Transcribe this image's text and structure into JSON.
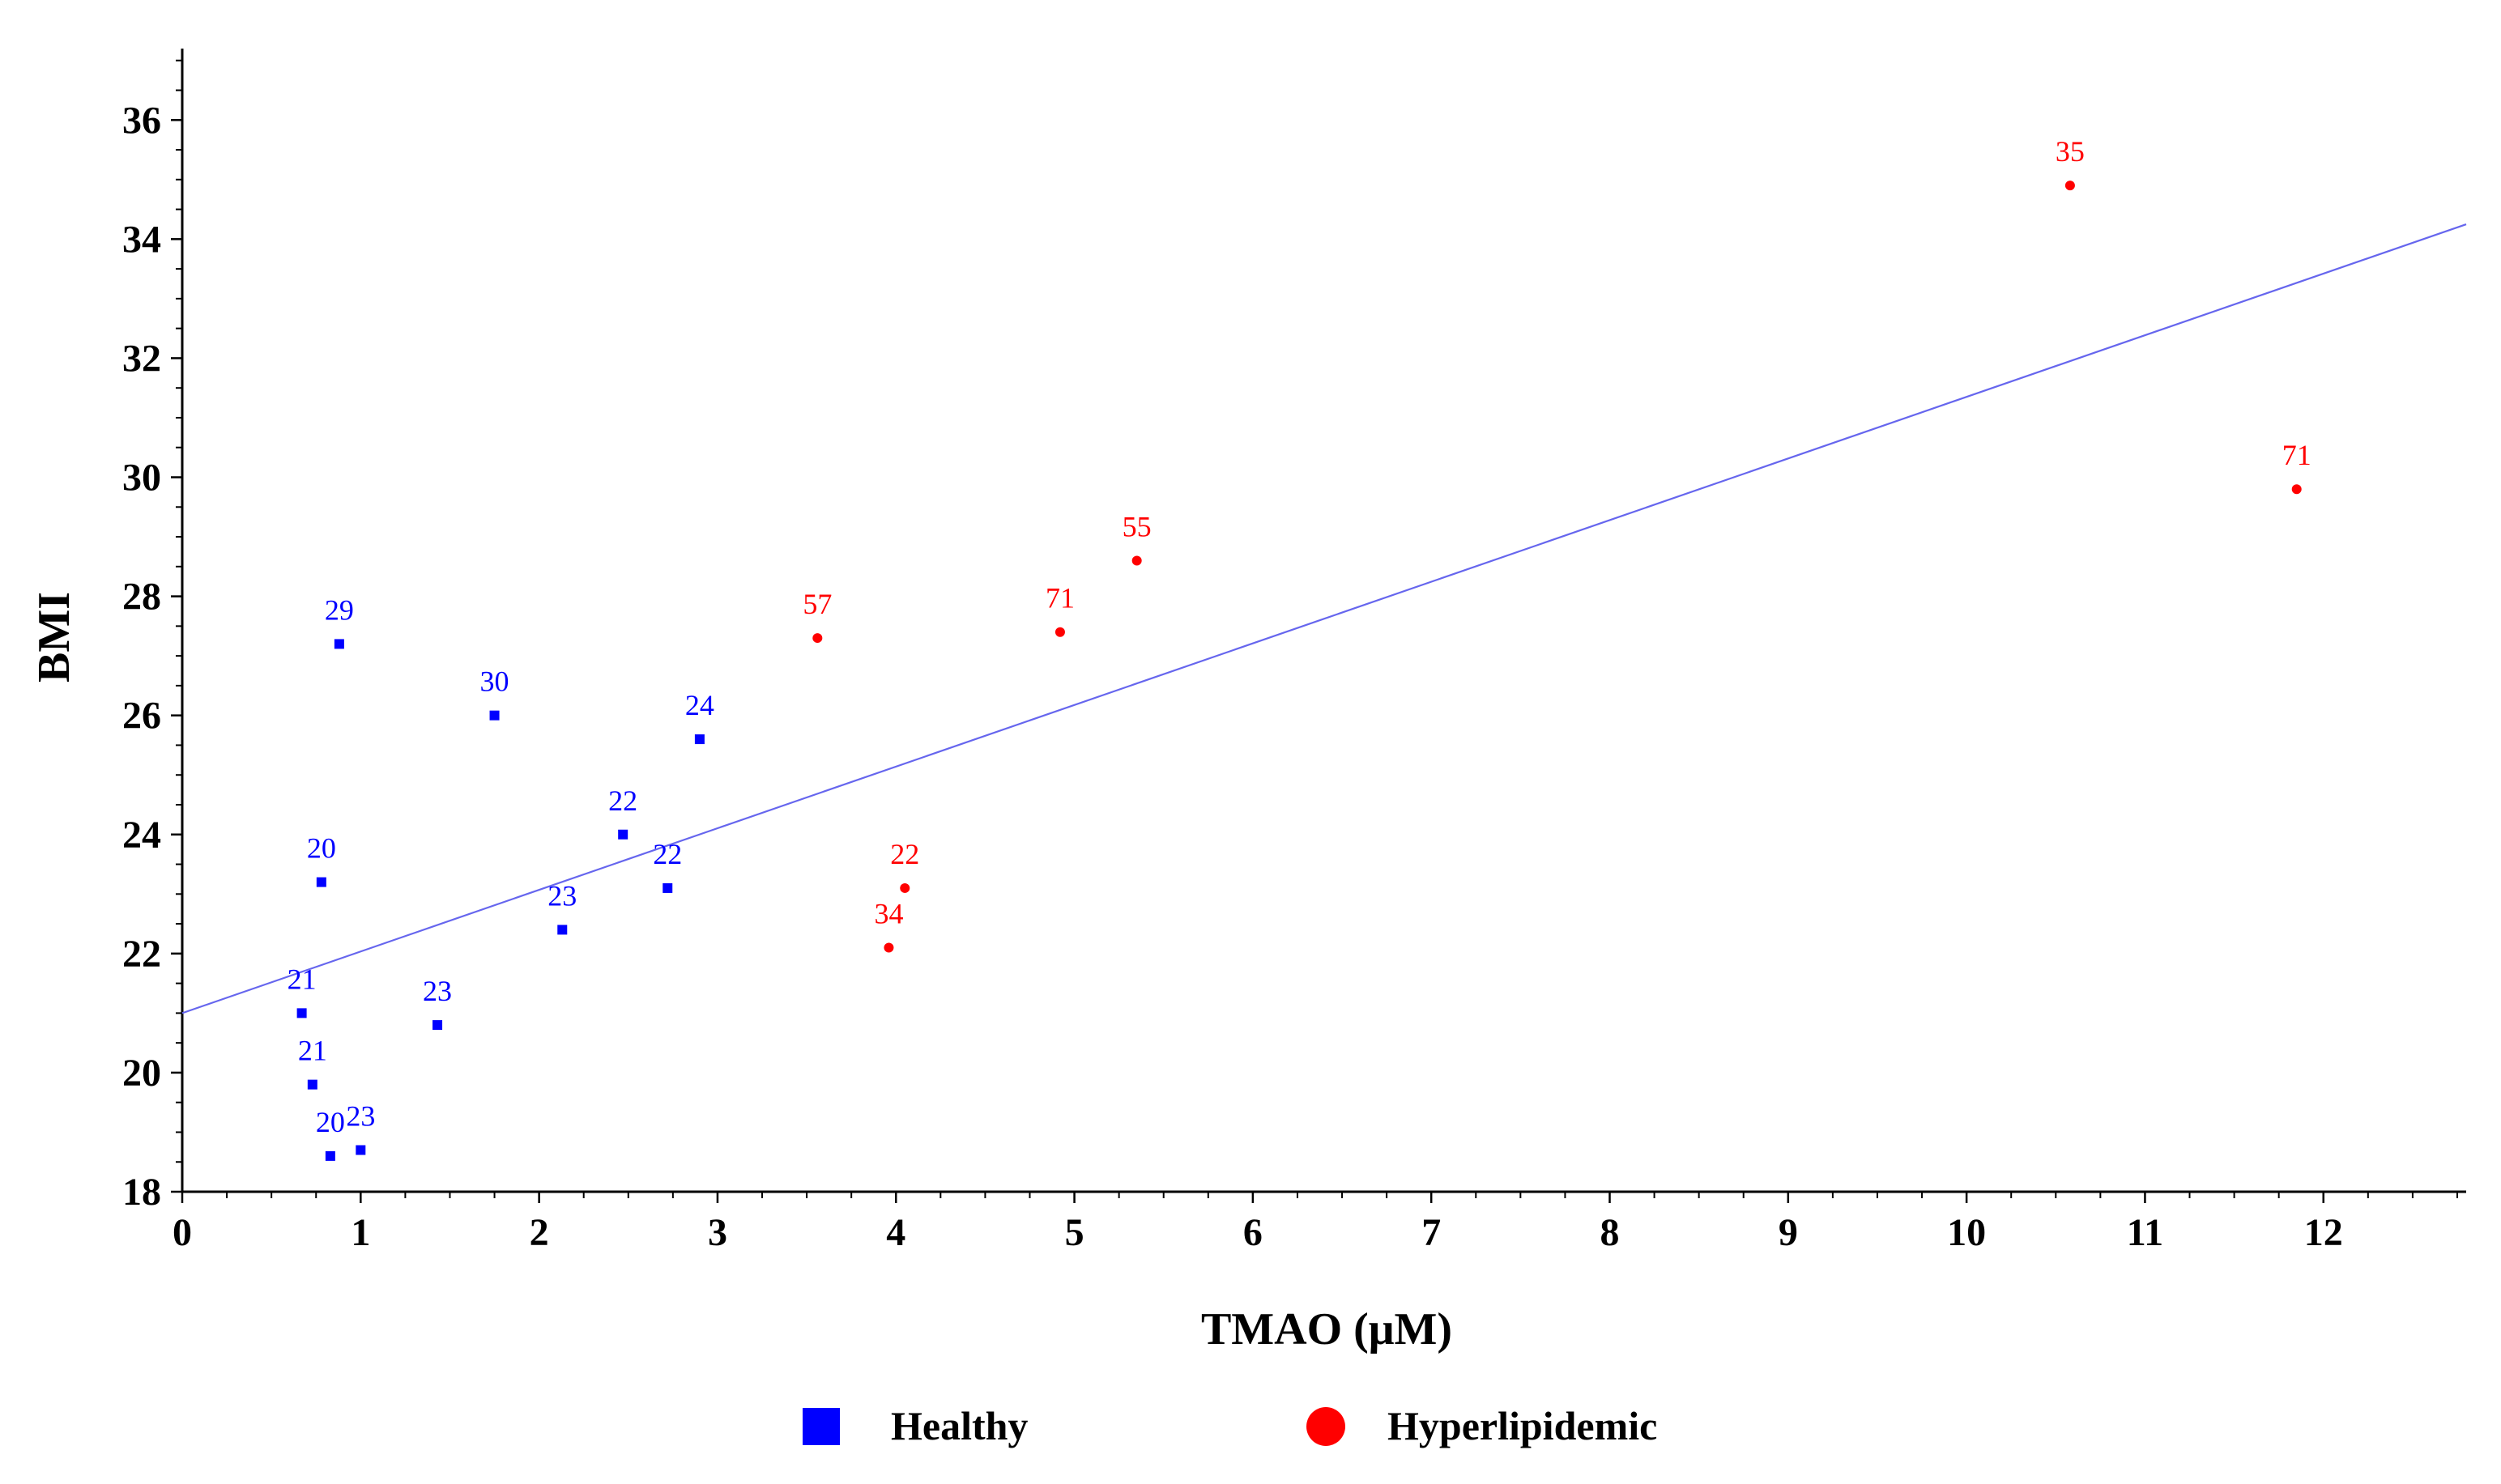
{
  "chart_data": {
    "type": "scatter",
    "title": "",
    "xlabel": "TMAO (μM)",
    "ylabel": "BMI",
    "xlim": [
      0,
      12.8
    ],
    "ylim": [
      18,
      37.2
    ],
    "xticks": [
      0,
      1,
      2,
      3,
      4,
      5,
      6,
      7,
      8,
      9,
      10,
      11,
      12
    ],
    "yticks": [
      18,
      20,
      22,
      24,
      26,
      28,
      30,
      32,
      34,
      36
    ],
    "grid": false,
    "legend_position": "bottom",
    "series": [
      {
        "name": "Healthy",
        "color": "#0000ff",
        "marker": "square",
        "points": [
          {
            "x": 0.88,
            "y": 27.2,
            "label": "29"
          },
          {
            "x": 1.75,
            "y": 26.0,
            "label": "30"
          },
          {
            "x": 2.9,
            "y": 25.6,
            "label": "24"
          },
          {
            "x": 0.78,
            "y": 23.2,
            "label": "20"
          },
          {
            "x": 2.47,
            "y": 24.0,
            "label": "22"
          },
          {
            "x": 2.72,
            "y": 23.1,
            "label": "22"
          },
          {
            "x": 2.13,
            "y": 22.4,
            "label": "23"
          },
          {
            "x": 0.67,
            "y": 21.0,
            "label": "21"
          },
          {
            "x": 1.43,
            "y": 20.8,
            "label": "23"
          },
          {
            "x": 0.73,
            "y": 19.8,
            "label": "21"
          },
          {
            "x": 0.83,
            "y": 18.6,
            "label": "20"
          },
          {
            "x": 1.0,
            "y": 18.7,
            "label": "23"
          }
        ]
      },
      {
        "name": "Hyperlipidemic",
        "color": "#ff0000",
        "marker": "circle",
        "points": [
          {
            "x": 10.58,
            "y": 34.9,
            "label": "35"
          },
          {
            "x": 11.85,
            "y": 29.8,
            "label": "71"
          },
          {
            "x": 5.35,
            "y": 28.6,
            "label": "55"
          },
          {
            "x": 4.92,
            "y": 27.4,
            "label": "71"
          },
          {
            "x": 3.56,
            "y": 27.3,
            "label": "57"
          },
          {
            "x": 4.05,
            "y": 23.1,
            "label": "22"
          },
          {
            "x": 3.96,
            "y": 22.1,
            "label": "34"
          }
        ]
      }
    ],
    "trendline": {
      "color": "#6666ee",
      "intercept": 21.0,
      "slope": 1.035,
      "x_range": [
        0,
        12.8
      ]
    }
  }
}
